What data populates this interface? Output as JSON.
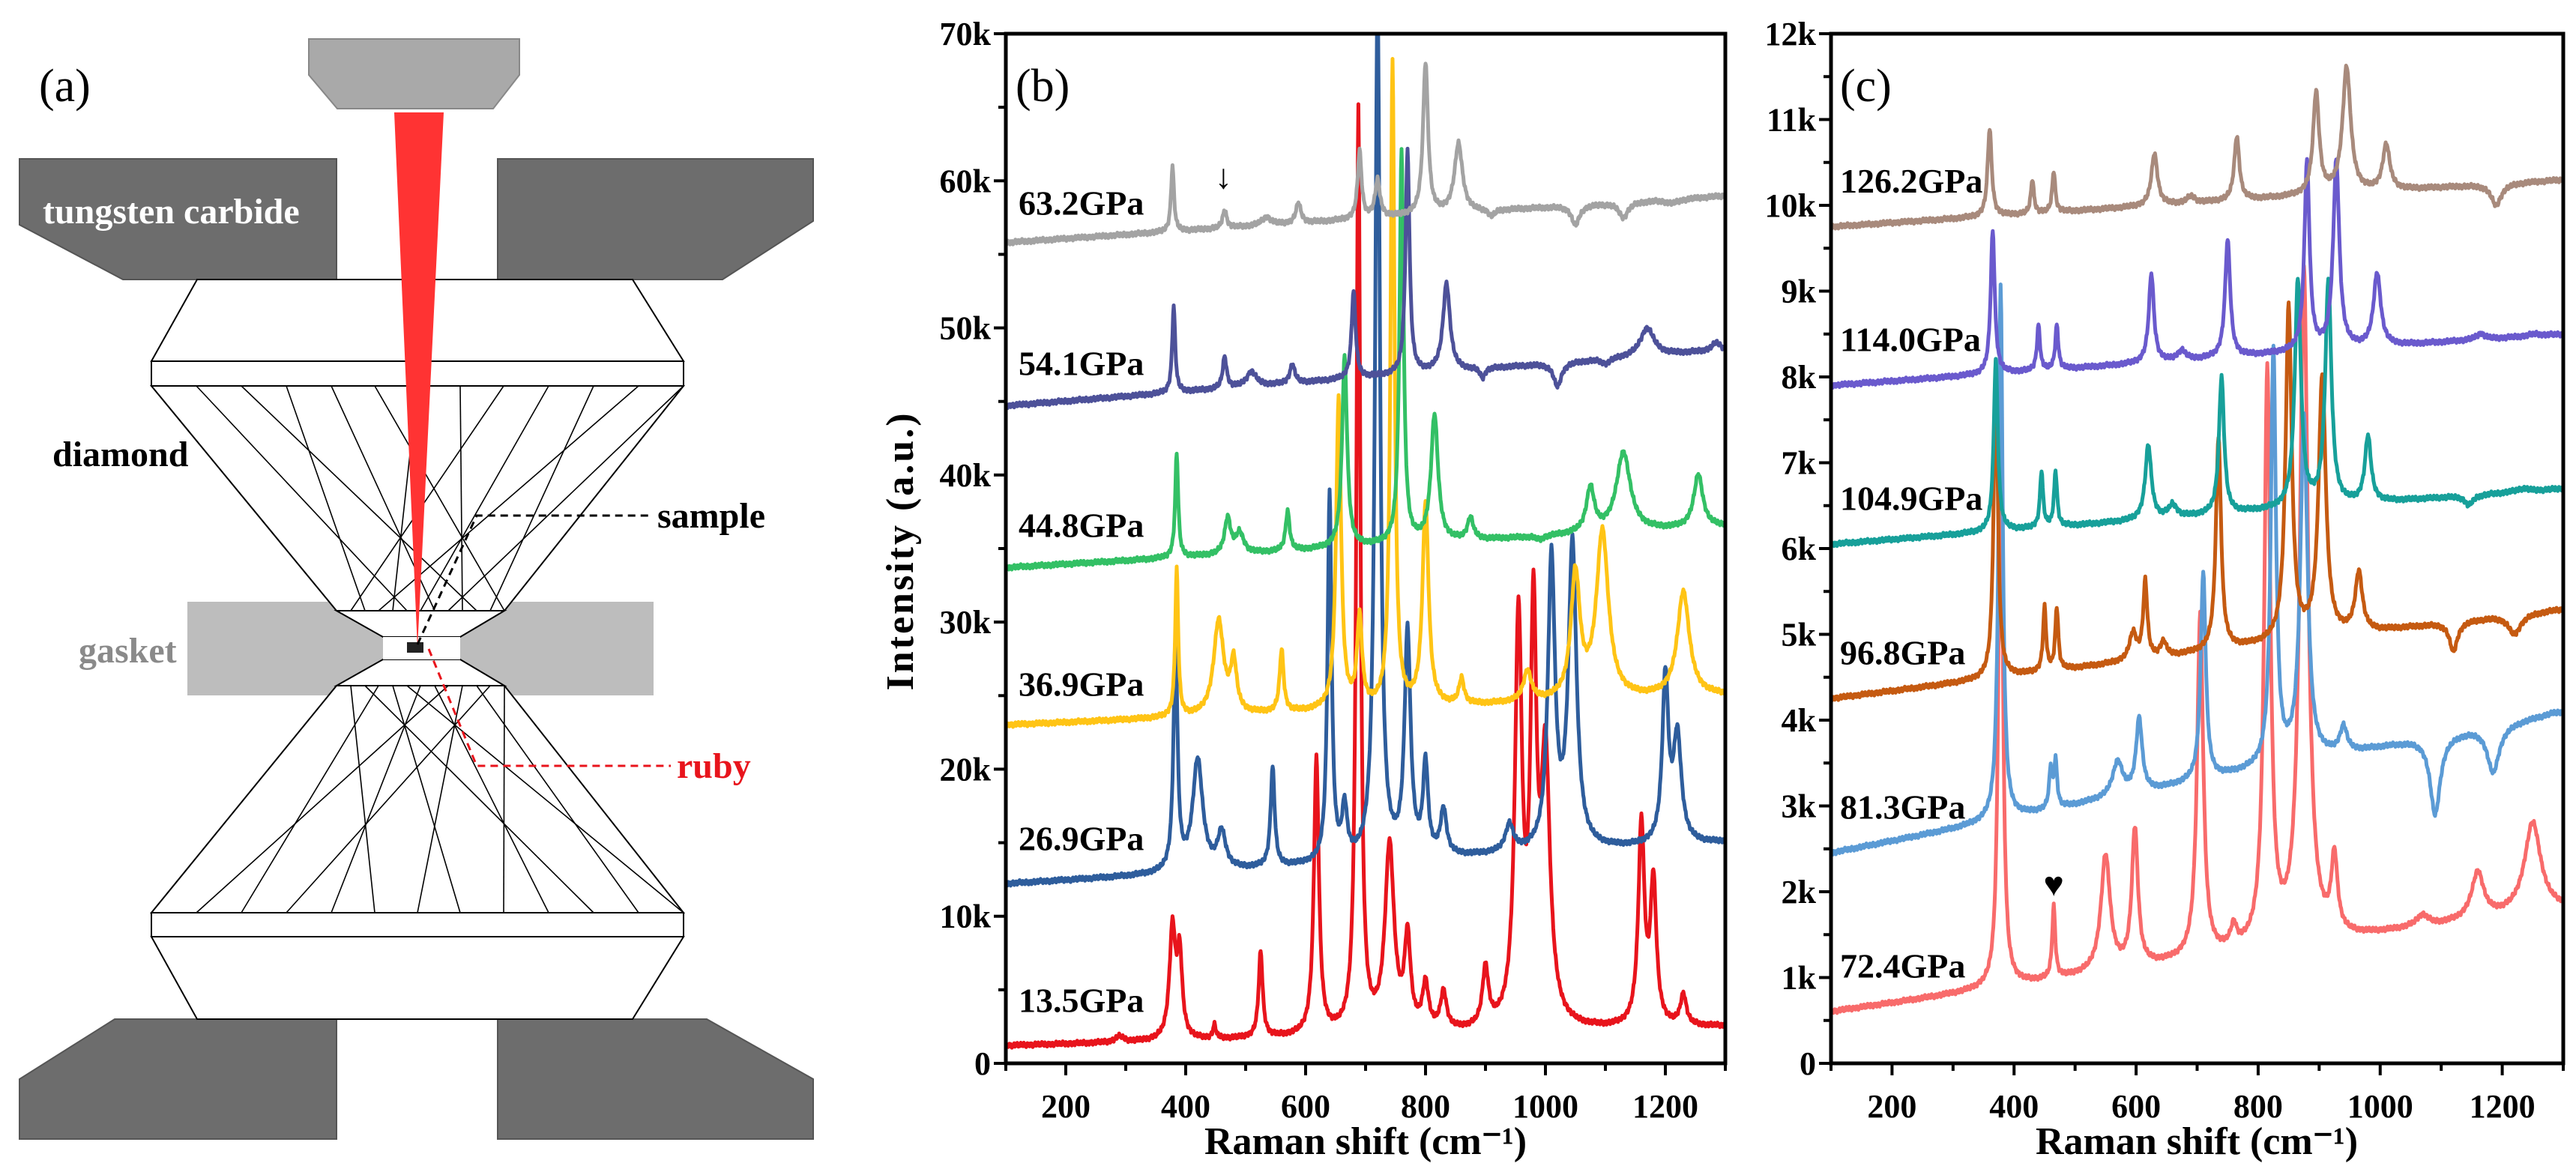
{
  "diagram": {
    "panel_label": "(a)",
    "labels": {
      "tungsten_carbide": "tungsten carbide",
      "diamond": "diamond",
      "sample": "sample",
      "gasket": "gasket",
      "ruby": "ruby"
    },
    "colors": {
      "laser": "#ff3333",
      "carbide": "#6d6d6d",
      "gasket": "#bdbdbd",
      "ruby": "#e8141c",
      "gasket_text": "#8a8a8a"
    }
  },
  "chart_data": [
    {
      "type": "line",
      "panel_label": "(b)",
      "xlabel": "Raman shift (cm⁻¹)",
      "ylabel": "Intensity (a.u.)",
      "xlim": [
        100,
        1300
      ],
      "ylim": [
        0,
        70000
      ],
      "xticks": [
        200,
        400,
        600,
        800,
        1000,
        1200
      ],
      "xtick_labels": [
        "200",
        "400",
        "600",
        "800",
        "1000",
        "1200"
      ],
      "yticks": [
        0,
        10000,
        20000,
        30000,
        40000,
        50000,
        60000,
        70000
      ],
      "ytick_labels": [
        "0",
        "10k",
        "20k",
        "30k",
        "40k",
        "50k",
        "60k",
        "70k"
      ],
      "grid": false,
      "annotations": [
        {
          "text": "↓",
          "x": 463,
          "y": 59500
        }
      ],
      "series": [
        {
          "name": "13.5GPa",
          "color": "#e8141c",
          "label_y": 3500,
          "baseline": [
            1200,
            2500
          ],
          "peaks": [
            [
              290,
              1800,
              8
            ],
            [
              378,
              9000,
              6
            ],
            [
              390,
              7000,
              5
            ],
            [
              448,
              2500,
              3
            ],
            [
              525,
              7500,
              4
            ],
            [
              618,
              20500,
              5
            ],
            [
              688,
              64500,
              4
            ],
            [
              740,
              14500,
              9
            ],
            [
              770,
              8000,
              6
            ],
            [
              800,
              5000,
              6
            ],
            [
              830,
              4500,
              6
            ],
            [
              900,
              6000,
              6
            ],
            [
              955,
              29500,
              7
            ],
            [
              980,
              28500,
              6
            ],
            [
              1000,
              20000,
              9
            ],
            [
              1160,
              16000,
              6
            ],
            [
              1180,
              12000,
              6
            ],
            [
              1230,
              4500,
              6
            ]
          ]
        },
        {
          "name": "26.9GPa",
          "color": "#2e5d9c",
          "label_y": 14500,
          "baseline": [
            12200,
            15000
          ],
          "peaks": [
            [
              383,
              28500,
              4
            ],
            [
              420,
              20500,
              10
            ],
            [
              460,
              15500,
              8
            ],
            [
              545,
              20000,
              4
            ],
            [
              640,
              38500,
              4
            ],
            [
              665,
              17000,
              5
            ],
            [
              720,
              72000,
              5
            ],
            [
              770,
              29000,
              6
            ],
            [
              800,
              20000,
              5
            ],
            [
              830,
              17000,
              6
            ],
            [
              940,
              16000,
              8
            ],
            [
              1010,
              34000,
              7
            ],
            [
              1045,
              35000,
              8
            ],
            [
              1200,
              26000,
              6
            ],
            [
              1220,
              22000,
              8
            ]
          ]
        },
        {
          "name": "36.9GPa",
          "color": "#ffc415",
          "label_y": 25000,
          "baseline": [
            23000,
            25000
          ],
          "peaks": [
            [
              385,
              33500,
              3
            ],
            [
              455,
              30000,
              10
            ],
            [
              480,
              27000,
              6
            ],
            [
              560,
              28000,
              4
            ],
            [
              655,
              45000,
              5
            ],
            [
              690,
              30000,
              5
            ],
            [
              745,
              68000,
              4
            ],
            [
              800,
              38000,
              6
            ],
            [
              860,
              26000,
              5
            ],
            [
              970,
              26500,
              8
            ],
            [
              1050,
              33000,
              9
            ],
            [
              1095,
              36000,
              12
            ],
            [
              1230,
              32000,
              12
            ]
          ]
        },
        {
          "name": "44.8GPa",
          "color": "#33c065",
          "label_y": 35800,
          "baseline": [
            33700,
            36500
          ],
          "peaks": [
            [
              385,
              41500,
              3
            ],
            [
              470,
              37000,
              6
            ],
            [
              490,
              36000,
              8
            ],
            [
              570,
              37500,
              4
            ],
            [
              665,
              48000,
              5
            ],
            [
              760,
              62000,
              4
            ],
            [
              815,
              44000,
              7
            ],
            [
              875,
              37000,
              6
            ],
            [
              990,
              35500,
              8
            ],
            [
              1075,
              39000,
              8
            ],
            [
              1130,
              41500,
              14
            ],
            [
              1255,
              40000,
              9
            ]
          ]
        },
        {
          "name": "54.1GPa",
          "color": "#4d5199",
          "label_y": 46800,
          "baseline": [
            44700,
            48500
          ],
          "peaks": [
            [
              380,
              51500,
              3
            ],
            [
              465,
              48000,
              4
            ],
            [
              510,
              47000,
              10
            ],
            [
              578,
              47500,
              5
            ],
            [
              680,
              52500,
              4
            ],
            [
              770,
              62000,
              4
            ],
            [
              835,
              53000,
              7
            ],
            [
              895,
              46500,
              5
            ],
            [
              1020,
              46000,
              8
            ],
            [
              1100,
              47500,
              9
            ],
            [
              1170,
              50000,
              14
            ],
            [
              1285,
              49000,
              8
            ]
          ]
        },
        {
          "name": "63.2GPa",
          "color": "#a3a3a3",
          "label_y": 57700,
          "baseline": [
            55800,
            59000
          ],
          "peaks": [
            [
              378,
              61000,
              3
            ],
            [
              465,
              58000,
              4
            ],
            [
              535,
              57500,
              10
            ],
            [
              588,
              58500,
              5
            ],
            [
              690,
              62000,
              4
            ],
            [
              720,
              60000,
              5
            ],
            [
              800,
              68000,
              5
            ],
            [
              855,
              62500,
              8
            ],
            [
              910,
              57500,
              6
            ],
            [
              1050,
              57000,
              8
            ],
            [
              1130,
              57500,
              9
            ],
            [
              1210,
              58500,
              14
            ]
          ]
        }
      ]
    },
    {
      "type": "line",
      "panel_label": "(c)",
      "xlabel": "Raman shift (cm⁻¹)",
      "ylabel": "",
      "xlim": [
        100,
        1300
      ],
      "ylim": [
        0,
        12000
      ],
      "xticks": [
        200,
        400,
        600,
        800,
        1000,
        1200
      ],
      "xtick_labels": [
        "200",
        "400",
        "600",
        "800",
        "1000",
        "1200"
      ],
      "yticks": [
        0,
        1000,
        2000,
        3000,
        4000,
        5000,
        6000,
        7000,
        8000,
        9000,
        10000,
        11000,
        12000
      ],
      "ytick_labels": [
        "0",
        "1k",
        "2k",
        "3k",
        "4k",
        "5k",
        "6k",
        "7k",
        "8k",
        "9k",
        "10k",
        "11k",
        "12k"
      ],
      "grid": false,
      "annotations": [
        {
          "text": "♥",
          "x": 465,
          "y": 1950
        }
      ],
      "series": [
        {
          "name": "72.4GPa",
          "color": "#f86b6b",
          "label_y": 1000,
          "baseline": [
            600,
            1800
          ],
          "peaks": [
            [
              378,
              8000,
              4
            ],
            [
              465,
              1800,
              3
            ],
            [
              550,
              2400,
              9
            ],
            [
              598,
              2700,
              6
            ],
            [
              705,
              5200,
              6
            ],
            [
              760,
              1500,
              6
            ],
            [
              815,
              8000,
              6
            ],
            [
              875,
              9200,
              8
            ],
            [
              925,
              2300,
              6
            ],
            [
              1070,
              1700,
              12
            ],
            [
              1160,
              2200,
              12
            ],
            [
              1250,
              2800,
              16
            ]
          ]
        },
        {
          "name": "81.3GPa",
          "color": "#5b9bd5",
          "label_y": 2850,
          "baseline": [
            2450,
            4100
          ],
          "peaks": [
            [
              378,
              9100,
              4
            ],
            [
              460,
              3400,
              3
            ],
            [
              468,
              3500,
              3
            ],
            [
              570,
              3500,
              10
            ],
            [
              605,
              4000,
              6
            ],
            [
              710,
              5700,
              5
            ],
            [
              825,
              8300,
              5
            ],
            [
              875,
              7500,
              7
            ],
            [
              940,
              3900,
              7
            ],
            [
              1090,
              2900,
              10
            ],
            [
              1185,
              3400,
              12
            ],
            [
              1290,
              4100,
              12
            ]
          ]
        },
        {
          "name": "96.8GPa",
          "color": "#c55a11",
          "label_y": 4650,
          "baseline": [
            4250,
            5300
          ],
          "peaks": [
            [
              370,
              8200,
              4
            ],
            [
              450,
              5300,
              3
            ],
            [
              470,
              5300,
              3
            ],
            [
              595,
              5000,
              7
            ],
            [
              615,
              5600,
              4
            ],
            [
              645,
              4900,
              6
            ],
            [
              735,
              7300,
              5
            ],
            [
              850,
              8800,
              6
            ],
            [
              905,
              8000,
              7
            ],
            [
              965,
              5700,
              7
            ],
            [
              1120,
              4800,
              8
            ],
            [
              1220,
              5000,
              12
            ]
          ]
        },
        {
          "name": "104.9GPa",
          "color": "#17a09a",
          "label_y": 6450,
          "baseline": [
            6050,
            6700
          ],
          "peaks": [
            [
              370,
              8200,
              4
            ],
            [
              445,
              6900,
              3
            ],
            [
              468,
              6900,
              3
            ],
            [
              620,
              7200,
              6
            ],
            [
              660,
              6500,
              8
            ],
            [
              740,
              8000,
              5
            ],
            [
              865,
              9100,
              6
            ],
            [
              915,
              9100,
              6
            ],
            [
              980,
              7300,
              6
            ],
            [
              1145,
              6500,
              8
            ],
            [
              1235,
              6700,
              12
            ]
          ]
        },
        {
          "name": "114.0GPa",
          "color": "#6a5acd",
          "label_y": 8300,
          "baseline": [
            7900,
            8500
          ],
          "peaks": [
            [
              365,
              9700,
              4
            ],
            [
              440,
              8600,
              3
            ],
            [
              470,
              8600,
              3
            ],
            [
              625,
              9200,
              5
            ],
            [
              675,
              8300,
              8
            ],
            [
              750,
              9600,
              5
            ],
            [
              880,
              10500,
              5
            ],
            [
              928,
              10500,
              6
            ],
            [
              995,
              9200,
              7
            ],
            [
              1165,
              8500,
              9
            ],
            [
              1255,
              8500,
              12
            ]
          ]
        },
        {
          "name": "126.2GPa",
          "color": "#a88a7c",
          "label_y": 10150,
          "baseline": [
            9750,
            10300
          ],
          "peaks": [
            [
              360,
              10900,
              4
            ],
            [
              430,
              10300,
              3
            ],
            [
              465,
              10400,
              3
            ],
            [
              630,
              10600,
              6
            ],
            [
              690,
              10100,
              8
            ],
            [
              765,
              10800,
              5
            ],
            [
              895,
              11300,
              6
            ],
            [
              945,
              11600,
              8
            ],
            [
              1010,
              10700,
              7
            ],
            [
              1190,
              10000,
              10
            ]
          ]
        }
      ]
    }
  ]
}
